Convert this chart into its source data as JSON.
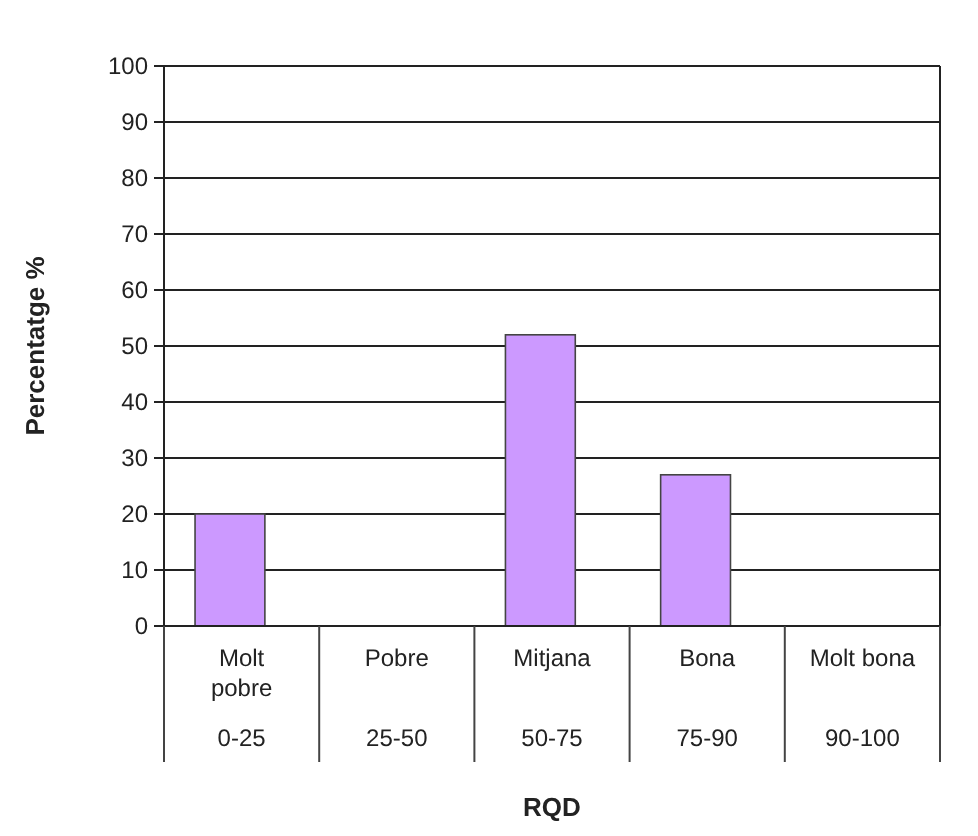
{
  "chart_data": {
    "type": "bar",
    "xlabel": "RQD",
    "ylabel": "Percentatge %",
    "categories": [
      "Molt pobre",
      "Pobre",
      "Mitjana",
      "Bona",
      "Molt bona"
    ],
    "values": [
      20,
      0,
      52,
      27,
      0
    ],
    "color": "#cc99ff",
    "ylim": [
      0,
      100
    ],
    "yticks": [
      0,
      10,
      20,
      30,
      40,
      50,
      60,
      70,
      80,
      90,
      100
    ],
    "grid": "y",
    "annotations": [
      "0-25",
      "25-50",
      "50-75",
      "75-90",
      "90-100"
    ]
  }
}
